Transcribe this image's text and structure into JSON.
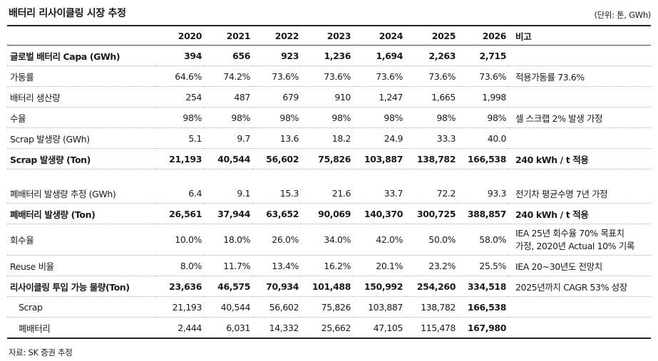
{
  "title": "배터리 리사이클링 시장 추정",
  "unit": "(단위: 톤, GWh)",
  "header": {
    "label": "",
    "years": [
      "2020",
      "2021",
      "2022",
      "2023",
      "2024",
      "2025",
      "2026"
    ],
    "note": "비고"
  },
  "rows": [
    {
      "label": "글로벌 배터리 Capa (GWh)",
      "values": [
        "394",
        "656",
        "923",
        "1,236",
        "1,694",
        "2,263",
        "2,715"
      ],
      "note": ""
    },
    {
      "label": "가동률",
      "values": [
        "64.6%",
        "74.2%",
        "73.6%",
        "73.6%",
        "73.6%",
        "73.6%",
        "73.6%"
      ],
      "note": "적용가동률 73.6%"
    },
    {
      "label": "배터리 생산량",
      "values": [
        "254",
        "487",
        "679",
        "910",
        "1,247",
        "1,665",
        "1,998"
      ],
      "note": ""
    },
    {
      "label": "수율",
      "values": [
        "98%",
        "98%",
        "98%",
        "98%",
        "98%",
        "98%",
        "98%"
      ],
      "note": "셀 스크랩 2% 발생 가정"
    },
    {
      "label": "Scrap 발생량 (GWh)",
      "values": [
        "5.1",
        "9.7",
        "13.6",
        "18.2",
        "24.9",
        "33.3",
        "40.0"
      ],
      "note": ""
    },
    {
      "label": "Scrap 발생량 (Ton)",
      "values": [
        "21,193",
        "40,544",
        "56,602",
        "75,826",
        "103,887",
        "138,782",
        "166,538"
      ],
      "note": "240 kWh / t 적용"
    },
    {
      "label": "폐배터리 발생량 추정 (GWh)",
      "values": [
        "6.4",
        "9.1",
        "15.3",
        "21.6",
        "33.7",
        "72.2",
        "93.3"
      ],
      "note": "전기차 평균수명 7년 가정"
    },
    {
      "label": "폐배터리 발생량 (Ton)",
      "values": [
        "26,561",
        "37,944",
        "63,652",
        "90,069",
        "140,370",
        "300,725",
        "388,857"
      ],
      "note": "240 kWh / t 적용"
    },
    {
      "label": "회수율",
      "values": [
        "10.0%",
        "18.0%",
        "26.0%",
        "34.0%",
        "42.0%",
        "50.0%",
        "58.0%"
      ],
      "note_line1": "IEA 25년 회수율 70% 목표치",
      "note_line2": "가정, 2020년 Actual 10% 기록"
    },
    {
      "label": "Reuse 비율",
      "values": [
        "8.0%",
        "11.7%",
        "13.4%",
        "16.2%",
        "20.1%",
        "23.2%",
        "25.5%"
      ],
      "note": "IEA 20~30년도 전망치"
    },
    {
      "label": "리사이클링 투입 가능 물량(Ton)",
      "values": [
        "23,636",
        "46,575",
        "70,934",
        "101,488",
        "150,992",
        "254,260",
        "334,518"
      ],
      "note": "2025년까지 CAGR 53% 성장"
    },
    {
      "label": "Scrap",
      "values": [
        "21,193",
        "40,544",
        "56,602",
        "75,826",
        "103,887",
        "138,782",
        "166,538"
      ],
      "note": ""
    },
    {
      "label": "폐배터리",
      "values": [
        "2,444",
        "6,031",
        "14,332",
        "25,662",
        "47,105",
        "115,478",
        "167,980"
      ],
      "note": ""
    }
  ],
  "source": "자료: SK 증권 추정"
}
